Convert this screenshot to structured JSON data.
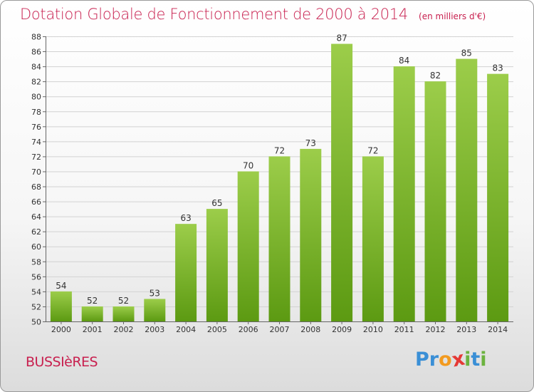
{
  "header": {
    "title": "Dotation Globale de Fonctionnement de 2000 à 2014",
    "unit": "(en milliers d'€)"
  },
  "footer": {
    "commune": "BUSSIèRES",
    "logo_text": "Proxiti",
    "logo_letters": [
      {
        "char": "P",
        "color": "#3a8fd6"
      },
      {
        "char": "r",
        "color": "#3a8fd6"
      },
      {
        "char": "o",
        "color": "#f29a1f"
      },
      {
        "char": "x",
        "color": "#e53935"
      },
      {
        "char": "i",
        "color": "#6cb33f"
      },
      {
        "char": "t",
        "color": "#3a8fd6"
      },
      {
        "char": "i",
        "color": "#6cb33f"
      }
    ]
  },
  "colors": {
    "accent": "#c8204f",
    "bar_top": "#9ccd4a",
    "bar_bottom": "#5c9a12"
  },
  "chart_data": {
    "type": "bar",
    "title": "Dotation Globale de Fonctionnement de 2000 à 2014",
    "subtitle": "(en milliers d'€)",
    "xlabel": "",
    "ylabel": "",
    "categories": [
      "2000",
      "2001",
      "2002",
      "2003",
      "2004",
      "2005",
      "2006",
      "2007",
      "2008",
      "2009",
      "2010",
      "2011",
      "2012",
      "2013",
      "2014"
    ],
    "values": [
      54,
      52,
      52,
      53,
      63,
      65,
      70,
      72,
      73,
      87,
      72,
      84,
      82,
      85,
      83
    ],
    "ylim": [
      50,
      88
    ],
    "yticks": [
      50,
      52,
      54,
      56,
      58,
      60,
      62,
      64,
      66,
      68,
      70,
      72,
      74,
      76,
      78,
      80,
      82,
      84,
      86,
      88
    ],
    "grid": true,
    "data_labels": true
  }
}
